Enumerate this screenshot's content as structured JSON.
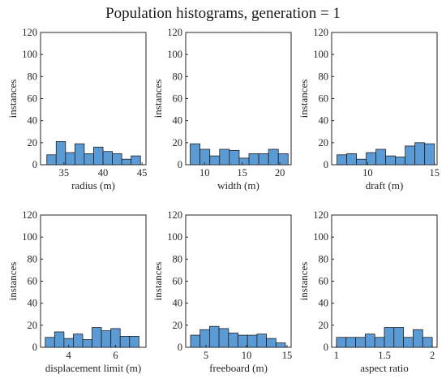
{
  "title": "Population histograms, generation = 1",
  "colors": {
    "bar_fill": "#5b9bd5",
    "bar_edge": "#1f1f1f",
    "axis": "#262626"
  },
  "chart_data": [
    {
      "type": "bar",
      "subtype": "histogram",
      "xlabel": "radius (m)",
      "ylabel": "instances",
      "xlim": [
        32,
        45.5
      ],
      "ylim": [
        0,
        120
      ],
      "xticks": [
        35,
        40,
        45
      ],
      "yticks": [
        0,
        20,
        40,
        60,
        80,
        100,
        120
      ],
      "bin_edges": [
        32.8,
        34.0,
        35.2,
        36.4,
        37.6,
        38.8,
        40.0,
        41.2,
        42.4,
        43.6,
        44.8
      ],
      "values": [
        9,
        21,
        11,
        19,
        10,
        16,
        12,
        10,
        5,
        8
      ]
    },
    {
      "type": "bar",
      "subtype": "histogram",
      "xlabel": "width (m)",
      "ylabel": "instances",
      "xlim": [
        7.5,
        21.5
      ],
      "ylim": [
        0,
        120
      ],
      "xticks": [
        10,
        15,
        20
      ],
      "yticks": [
        0,
        20,
        40,
        60,
        80,
        100,
        120
      ],
      "bin_edges": [
        8.1,
        9.4,
        10.7,
        12.0,
        13.3,
        14.6,
        15.9,
        17.2,
        18.5,
        19.8,
        21.1
      ],
      "values": [
        19,
        14,
        8,
        14,
        13,
        6,
        10,
        10,
        14,
        10
      ]
    },
    {
      "type": "bar",
      "subtype": "histogram",
      "xlabel": "draft (m)",
      "ylabel": "instances",
      "xlim": [
        7.3,
        15.2
      ],
      "ylim": [
        0,
        120
      ],
      "xticks": [
        10,
        15
      ],
      "yticks": [
        0,
        20,
        40,
        60,
        80,
        100,
        120
      ],
      "bin_edges": [
        7.7,
        8.43,
        9.16,
        9.89,
        10.62,
        11.35,
        12.08,
        12.81,
        13.54,
        14.27,
        15.0
      ],
      "values": [
        9,
        10,
        5,
        11,
        14,
        8,
        7,
        17,
        20,
        19
      ]
    },
    {
      "type": "bar",
      "subtype": "histogram",
      "xlabel": "displacement limit (m)",
      "ylabel": "instances",
      "xlim": [
        2.8,
        7.3
      ],
      "ylim": [
        0,
        120
      ],
      "xticks": [
        4,
        6
      ],
      "yticks": [
        0,
        20,
        40,
        60,
        80,
        100,
        120
      ],
      "bin_edges": [
        3.0,
        3.4,
        3.8,
        4.2,
        4.6,
        5.0,
        5.4,
        5.8,
        6.2,
        6.6,
        7.0
      ],
      "values": [
        9,
        14,
        8,
        12,
        7,
        18,
        15,
        17,
        10,
        10
      ]
    },
    {
      "type": "bar",
      "subtype": "histogram",
      "xlabel": "freeboard (m)",
      "ylabel": "instances",
      "xlim": [
        2.5,
        15.5
      ],
      "ylim": [
        0,
        120
      ],
      "xticks": [
        5,
        10,
        15
      ],
      "yticks": [
        0,
        20,
        40,
        60,
        80,
        100,
        120
      ],
      "bin_edges": [
        3.1,
        4.27,
        5.44,
        6.61,
        7.78,
        8.95,
        10.12,
        11.29,
        12.46,
        13.63,
        14.8
      ],
      "values": [
        11,
        16,
        19,
        17,
        13,
        11,
        11,
        12,
        8,
        4
      ]
    },
    {
      "type": "bar",
      "subtype": "histogram",
      "xlabel": "aspect ratio",
      "ylabel": "instances",
      "xlim": [
        0.95,
        2.05
      ],
      "ylim": [
        0,
        120
      ],
      "xticks": [
        1,
        1.5,
        2
      ],
      "yticks": [
        0,
        20,
        40,
        60,
        80,
        100,
        120
      ],
      "bin_edges": [
        1.0,
        1.1,
        1.2,
        1.3,
        1.4,
        1.5,
        1.6,
        1.7,
        1.8,
        1.9,
        2.0
      ],
      "values": [
        9,
        9,
        9,
        12,
        9,
        18,
        18,
        9,
        16,
        9
      ]
    }
  ]
}
